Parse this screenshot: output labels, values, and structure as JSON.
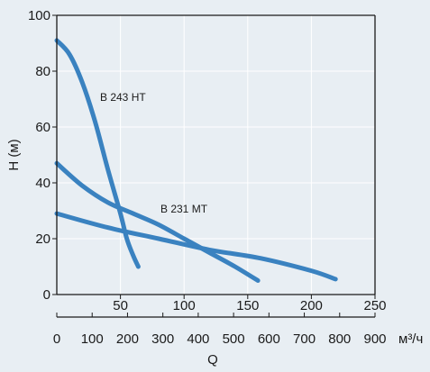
{
  "chart_data": {
    "type": "line",
    "ylabel": "H (м)",
    "xlabel": "Q",
    "unit_label": "м³/ч",
    "ylim": [
      0,
      100
    ],
    "xlim_top": [
      0,
      250
    ],
    "xlim_bottom": [
      0,
      900
    ],
    "yticks": [
      "0",
      "20",
      "40",
      "60",
      "80",
      "100"
    ],
    "xticks_top": [
      "50",
      "100",
      "150",
      "200",
      "250"
    ],
    "xticks_bottom": [
      "0",
      "100",
      "200",
      "300",
      "400",
      "500",
      "600",
      "700",
      "800",
      "900"
    ],
    "grid": true,
    "series": [
      {
        "name": "B 243 HT",
        "x": [
          0,
          10,
          20,
          30,
          40,
          50,
          55,
          60,
          64
        ],
        "y": [
          91,
          86,
          76,
          62,
          45,
          29,
          20,
          14,
          10
        ]
      },
      {
        "name": "B 231 MT",
        "x": [
          0,
          20,
          40,
          60,
          80,
          100,
          120,
          140,
          158
        ],
        "y": [
          47,
          39,
          33,
          29,
          25,
          20,
          15,
          10,
          5
        ]
      },
      {
        "name": "",
        "x": [
          0,
          40,
          80,
          120,
          160,
          200,
          219
        ],
        "y": [
          29,
          24,
          20,
          16,
          13,
          8.5,
          5.5
        ]
      }
    ]
  },
  "colors": {
    "line": "#3a82c0",
    "grid": "#ffffff",
    "axis": "#1a1a1a",
    "background": "#e8eef3"
  }
}
